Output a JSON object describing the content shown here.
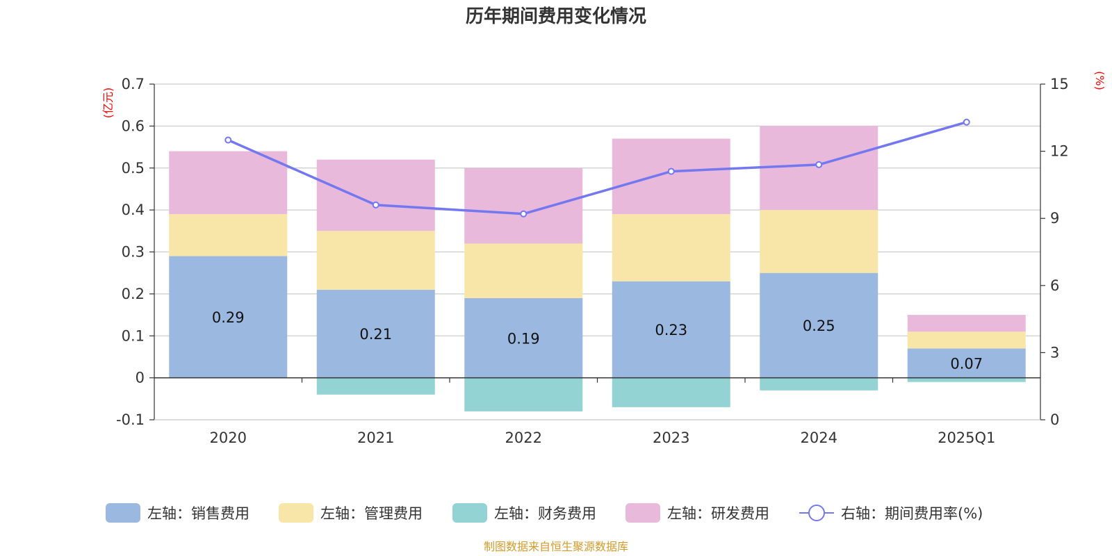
{
  "chart_data": {
    "type": "bar",
    "title": "历年期间费用变化情况",
    "categories": [
      "2020",
      "2021",
      "2022",
      "2023",
      "2024",
      "2025Q1"
    ],
    "stacked": true,
    "left_axis": {
      "unit": "(亿元)",
      "ylim": [
        -0.1,
        0.7
      ],
      "ticks": [
        -0.1,
        0,
        0.1,
        0.2,
        0.3,
        0.4,
        0.5,
        0.6,
        0.7
      ],
      "tick_labels": [
        "-0.1",
        "0",
        "0.1",
        "0.2",
        "0.3",
        "0.4",
        "0.5",
        "0.6",
        "0.7"
      ]
    },
    "right_axis": {
      "unit": "(%)",
      "ylim": [
        0,
        15
      ],
      "ticks": [
        0,
        3,
        6,
        9,
        12,
        15
      ],
      "tick_labels": [
        "0",
        "3",
        "6",
        "9",
        "12",
        "15"
      ]
    },
    "series": [
      {
        "name": "左轴：销售费用",
        "type": "bar",
        "axis": "left",
        "color": "#9bb8e0",
        "values": [
          0.29,
          0.21,
          0.19,
          0.23,
          0.25,
          0.07
        ],
        "labels": [
          "0.29",
          "0.21",
          "0.19",
          "0.23",
          "0.25",
          "0.07"
        ]
      },
      {
        "name": "左轴：管理费用",
        "type": "bar",
        "axis": "left",
        "color": "#f8e6a8",
        "values": [
          0.1,
          0.14,
          0.13,
          0.16,
          0.15,
          0.04
        ]
      },
      {
        "name": "左轴：财务费用",
        "type": "bar",
        "axis": "left",
        "color": "#94d3d4",
        "values": [
          0.0,
          -0.04,
          -0.08,
          -0.07,
          -0.03,
          -0.01
        ]
      },
      {
        "name": "左轴：研发费用",
        "type": "bar",
        "axis": "left",
        "color": "#e8b9da",
        "values": [
          0.15,
          0.17,
          0.18,
          0.18,
          0.2,
          0.04
        ]
      },
      {
        "name": "右轴：期间费用率(%)",
        "type": "line",
        "axis": "right",
        "color": "#7378f0",
        "values": [
          12.5,
          9.6,
          9.2,
          11.1,
          11.4,
          13.3
        ]
      }
    ],
    "grid": true,
    "legend_position": "bottom"
  },
  "colors": {
    "title": "#333333",
    "axis_unit": "#ff0000",
    "grid": "#cccccc",
    "source": "#d49b2a"
  },
  "source_note": "制图数据来自恒生聚源数据库"
}
